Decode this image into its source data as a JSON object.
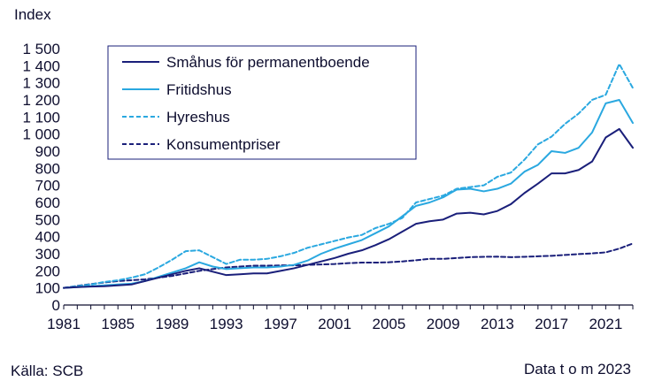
{
  "chart_data": {
    "type": "line",
    "ylabel": "Index",
    "ylim": [
      0,
      1500
    ],
    "yticks": [
      0,
      100,
      200,
      300,
      400,
      500,
      600,
      700,
      800,
      900,
      1000,
      1100,
      1200,
      1300,
      1400,
      1500
    ],
    "ytick_labels": [
      "0",
      "100",
      "200",
      "300",
      "400",
      "500",
      "600",
      "700",
      "800",
      "900",
      "1 000",
      "1 100",
      "1 200",
      "1 300",
      "1 400",
      "1 500"
    ],
    "xlim": [
      1981,
      2023
    ],
    "xticks": [
      1981,
      1985,
      1989,
      1993,
      1997,
      2001,
      2005,
      2009,
      2013,
      2017,
      2021
    ],
    "xtick_labels": [
      "1981",
      "1985",
      "1989",
      "1993",
      "1997",
      "2001",
      "2005",
      "2009",
      "2013",
      "2017",
      "2021"
    ],
    "legend_position": "top-left-center",
    "x": [
      1981,
      1982,
      1983,
      1984,
      1985,
      1986,
      1987,
      1988,
      1989,
      1990,
      1991,
      1992,
      1993,
      1994,
      1995,
      1996,
      1997,
      1998,
      1999,
      2000,
      2001,
      2002,
      2003,
      2004,
      2005,
      2006,
      2007,
      2008,
      2009,
      2010,
      2011,
      2012,
      2013,
      2014,
      2015,
      2016,
      2017,
      2018,
      2019,
      2020,
      2021,
      2022,
      2023
    ],
    "series": [
      {
        "name": "Småhus för permanentboende",
        "color": "#1a1f7a",
        "dash": "solid",
        "values": [
          100,
          105,
          108,
          110,
          115,
          120,
          140,
          160,
          180,
          200,
          215,
          195,
          175,
          180,
          185,
          185,
          200,
          215,
          235,
          255,
          275,
          300,
          320,
          350,
          385,
          430,
          475,
          490,
          500,
          535,
          540,
          530,
          550,
          590,
          655,
          710,
          770,
          770,
          790,
          840,
          980,
          1030,
          920
        ]
      },
      {
        "name": "Fritidshus",
        "color": "#2aa8e0",
        "dash": "solid",
        "values": [
          100,
          105,
          110,
          115,
          120,
          125,
          140,
          165,
          190,
          215,
          250,
          225,
          210,
          215,
          220,
          220,
          225,
          235,
          260,
          300,
          330,
          355,
          380,
          420,
          460,
          520,
          580,
          600,
          630,
          675,
          680,
          665,
          680,
          710,
          780,
          820,
          900,
          890,
          920,
          1010,
          1180,
          1200,
          1065
        ]
      },
      {
        "name": "Hyreshus",
        "color": "#2aa8e0",
        "dash": "dashed",
        "values": [
          100,
          110,
          120,
          135,
          145,
          160,
          180,
          220,
          265,
          315,
          320,
          280,
          240,
          265,
          265,
          270,
          285,
          305,
          335,
          355,
          375,
          395,
          410,
          450,
          475,
          510,
          600,
          620,
          640,
          680,
          690,
          700,
          750,
          775,
          850,
          940,
          985,
          1060,
          1120,
          1200,
          1230,
          1410,
          1270
        ]
      },
      {
        "name": "Konsumentpriser",
        "color": "#1a1f7a",
        "dash": "dashed",
        "values": [
          100,
          112,
          122,
          132,
          140,
          145,
          150,
          160,
          170,
          185,
          200,
          210,
          220,
          225,
          230,
          230,
          232,
          232,
          235,
          237,
          240,
          245,
          248,
          248,
          250,
          255,
          262,
          270,
          270,
          275,
          280,
          282,
          283,
          280,
          282,
          285,
          288,
          293,
          298,
          302,
          308,
          330,
          360
        ]
      }
    ]
  },
  "footer": {
    "source": "Källa: SCB",
    "data_note": "Data t o m 2023"
  }
}
